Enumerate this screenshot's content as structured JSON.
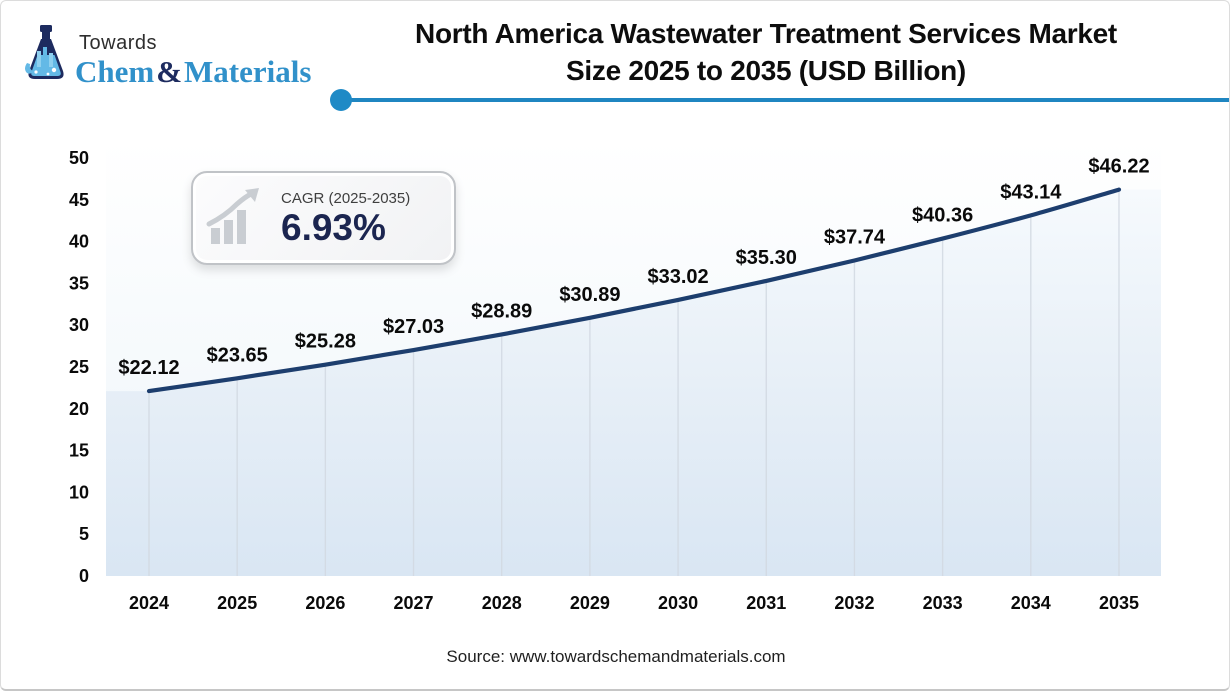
{
  "logo": {
    "brand_top": "Towards",
    "brand_chem": "Chem",
    "brand_amp": "&",
    "brand_materials": "Materials"
  },
  "header": {
    "title_line1": "North America Wastewater Treatment Services Market",
    "title_line2": "Size 2025 to 2035 (USD Billion)"
  },
  "cagr_badge": {
    "label": "CAGR (2025-2035)",
    "value": "6.93%"
  },
  "source": "Source: www.towardschemandmaterials.com",
  "colors": {
    "accent_blue": "#1f86c1",
    "line_navy": "#1d3e6e",
    "logo_blue": "#3191ca",
    "logo_navy": "#1d2b5f",
    "badge_value_navy": "#1b2550",
    "area_fill_top": "#f6fafd",
    "area_fill_bottom": "#d9e6f3",
    "dropline_gray": "#d2d9e2",
    "label_black": "#0a0a0a"
  },
  "chart_data": {
    "type": "area",
    "title": "North America Wastewater Treatment Services Market Size 2025 to 2035 (USD Billion)",
    "xlabel": "",
    "ylabel": "",
    "categories": [
      "2024",
      "2025",
      "2026",
      "2027",
      "2028",
      "2029",
      "2030",
      "2031",
      "2032",
      "2033",
      "2034",
      "2035"
    ],
    "values": [
      22.12,
      23.65,
      25.28,
      27.03,
      28.89,
      30.89,
      33.02,
      35.3,
      37.74,
      40.36,
      43.14,
      46.22
    ],
    "point_labels": [
      "$22.12",
      "$23.65",
      "$25.28",
      "$27.03",
      "$28.89",
      "$30.89",
      "$33.02",
      "$35.30",
      "$37.74",
      "$40.36",
      "$43.14",
      "$46.22"
    ],
    "yticks": [
      0,
      5,
      10,
      15,
      20,
      25,
      30,
      35,
      40,
      45,
      50
    ],
    "ylim": [
      0,
      50
    ],
    "grid": "vertical-droplines",
    "legend": "none"
  }
}
